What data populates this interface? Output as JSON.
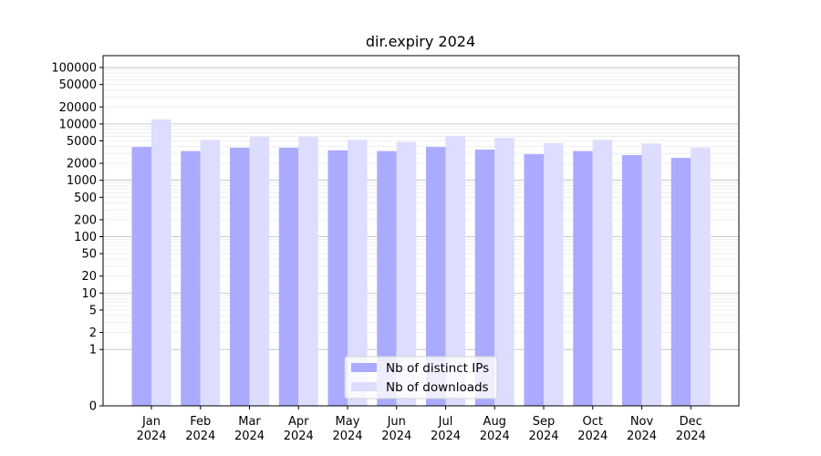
{
  "chart_data": {
    "type": "bar",
    "title": "dir.expiry 2024",
    "xlabel": "",
    "ylabel": "",
    "y_scale": "symlog",
    "ylim": [
      0,
      130000
    ],
    "y_ticks": [
      0,
      1,
      2,
      5,
      10,
      20,
      50,
      100,
      200,
      500,
      1000,
      2000,
      5000,
      10000,
      20000,
      50000,
      100000
    ],
    "y_tick_labels": [
      "0",
      "1",
      "2",
      "5",
      "10",
      "20",
      "50",
      "100",
      "200",
      "500",
      "1000",
      "2000",
      "5000",
      "10000",
      "20000",
      "50000",
      "100000"
    ],
    "categories": [
      [
        "Jan",
        "2024"
      ],
      [
        "Feb",
        "2024"
      ],
      [
        "Mar",
        "2024"
      ],
      [
        "Apr",
        "2024"
      ],
      [
        "May",
        "2024"
      ],
      [
        "Jun",
        "2024"
      ],
      [
        "Jul",
        "2024"
      ],
      [
        "Aug",
        "2024"
      ],
      [
        "Sep",
        "2024"
      ],
      [
        "Oct",
        "2024"
      ],
      [
        "Nov",
        "2024"
      ],
      [
        "Dec",
        "2024"
      ]
    ],
    "series": [
      {
        "name": "Nb of distinct IPs",
        "color": "#aaaaff",
        "values": [
          3900,
          3300,
          3800,
          3800,
          3400,
          3300,
          3900,
          3500,
          2900,
          3300,
          2800,
          2500
        ]
      },
      {
        "name": "Nb of downloads",
        "color": "#ddddff",
        "values": [
          12000,
          5200,
          5900,
          5900,
          5200,
          4800,
          6100,
          5700,
          4600,
          5200,
          4500,
          3800
        ]
      }
    ],
    "grid": true,
    "legend_position": "bottom-center"
  }
}
